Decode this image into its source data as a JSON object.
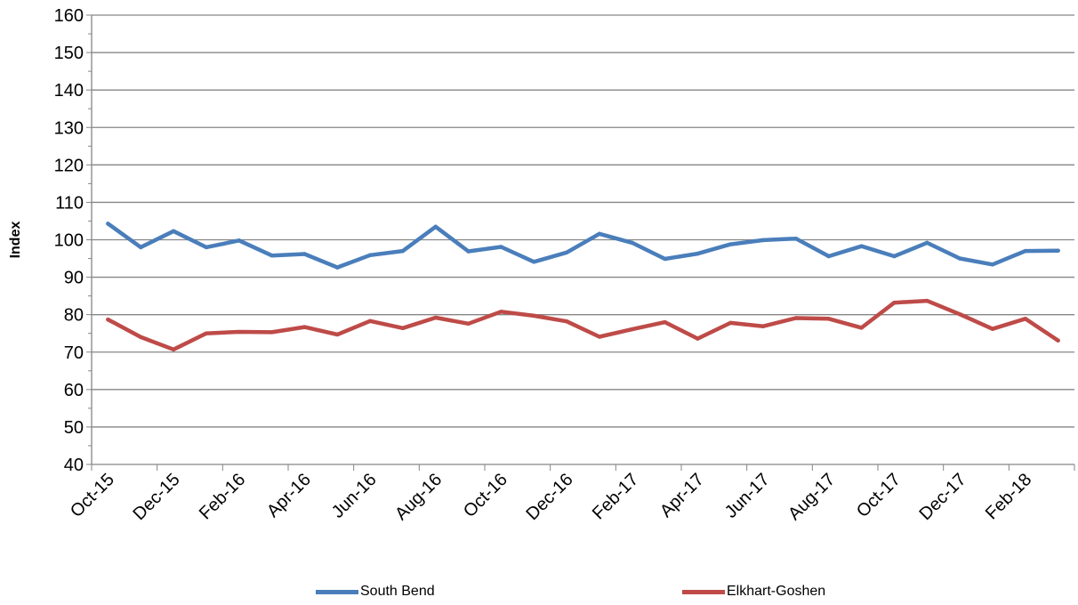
{
  "chart_data": {
    "type": "line",
    "title": "",
    "ylabel": "Index",
    "xlabel": "",
    "ylim": [
      40,
      160
    ],
    "y_ticks": [
      40,
      50,
      60,
      70,
      80,
      90,
      100,
      110,
      120,
      130,
      140,
      150,
      160
    ],
    "x": [
      "Oct-15",
      "Nov-15",
      "Dec-15",
      "Jan-16",
      "Feb-16",
      "Mar-16",
      "Apr-16",
      "May-16",
      "Jun-16",
      "Jul-16",
      "Aug-16",
      "Sep-16",
      "Oct-16",
      "Nov-16",
      "Dec-16",
      "Jan-17",
      "Feb-17",
      "Mar-17",
      "Apr-17",
      "May-17",
      "Jun-17",
      "Jul-17",
      "Aug-17",
      "Sep-17",
      "Oct-17",
      "Nov-17",
      "Dec-17",
      "Jan-18",
      "Feb-18",
      "Mar-18"
    ],
    "x_tick_labels": [
      "Oct-15",
      "Dec-15",
      "Feb-16",
      "Apr-16",
      "Jun-16",
      "Aug-16",
      "Oct-16",
      "Dec-16",
      "Feb-17",
      "Apr-17",
      "Jun-17",
      "Aug-17",
      "Oct-17",
      "Dec-17",
      "Feb-18"
    ],
    "series": [
      {
        "name": "South Bend",
        "color": "#4a7ebb",
        "values": [
          104.3,
          98.0,
          102.3,
          98.0,
          99.8,
          95.8,
          96.2,
          92.6,
          95.9,
          97.0,
          103.5,
          96.9,
          98.1,
          94.1,
          96.6,
          101.6,
          99.2,
          94.9,
          96.3,
          98.8,
          99.9,
          100.3,
          95.6,
          98.3,
          95.6,
          99.2,
          95.0,
          93.4,
          97.0,
          97.1
        ]
      },
      {
        "name": "Elkhart-Goshen",
        "color": "#be4b48",
        "values": [
          78.7,
          74.0,
          70.7,
          75.0,
          75.4,
          75.3,
          76.7,
          74.7,
          78.3,
          76.4,
          79.2,
          77.6,
          80.8,
          79.7,
          78.2,
          74.1,
          76.1,
          78.0,
          73.6,
          77.8,
          76.9,
          79.1,
          78.9,
          76.5,
          83.2,
          83.7,
          80.1,
          76.2,
          78.9,
          73.1
        ]
      }
    ],
    "grid": true,
    "legend_position": "bottom"
  }
}
